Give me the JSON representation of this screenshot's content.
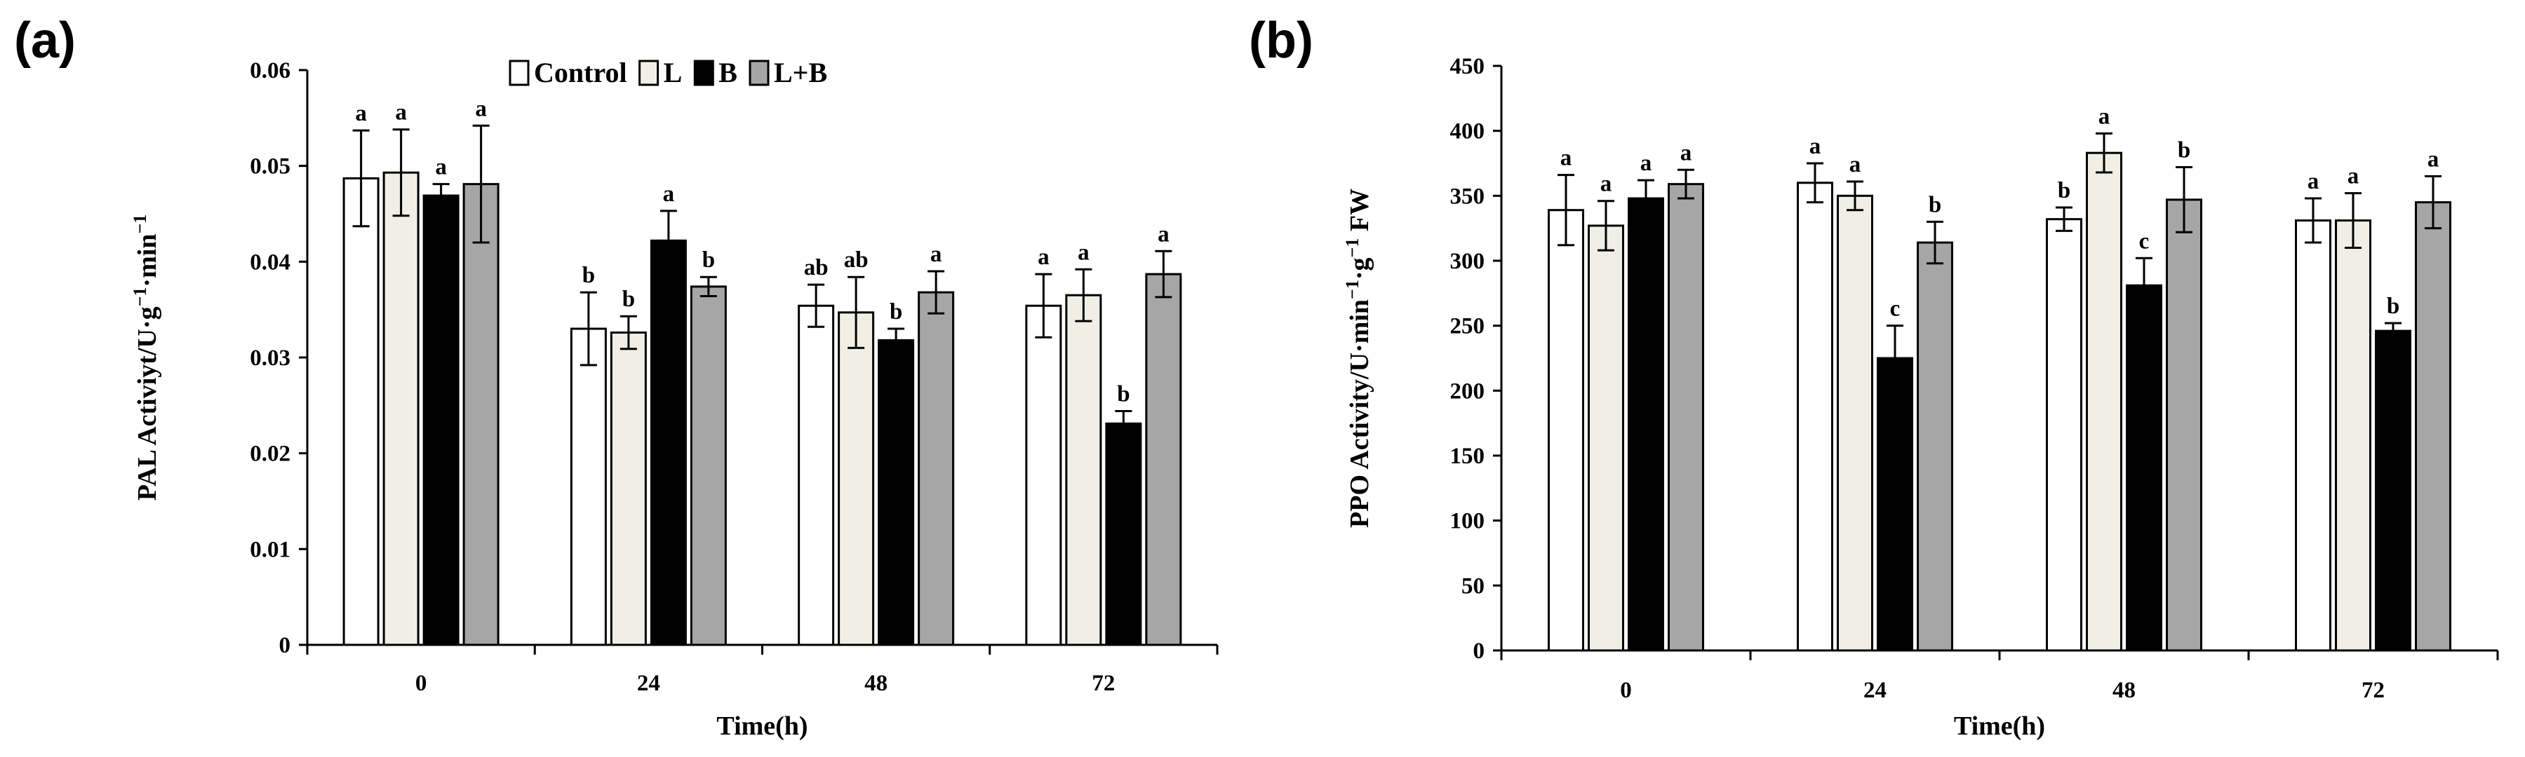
{
  "colors": {
    "Control": "#ffffff",
    "L": "#f0efe6",
    "B": "#000000",
    "L+B": "#a6a6a6",
    "axis": "#000000"
  },
  "legend": [
    "Control",
    "L",
    "B",
    "L+B"
  ],
  "chart_data": [
    {
      "panel": "(a)",
      "type": "bar",
      "ylabel": "PAL Activiyt/U·g⁻¹·min⁻¹",
      "xlabel": "Time(h)",
      "categories": [
        "0",
        "24",
        "48",
        "72"
      ],
      "ylim": [
        0,
        0.06
      ],
      "yticks": [
        "0",
        "0.01",
        "0.02",
        "0.03",
        "0.04",
        "0.05",
        "0.06"
      ],
      "legend_position": "top-right",
      "series": [
        {
          "name": "Control",
          "values": [
            0.0487,
            0.033,
            0.0354,
            0.0354
          ],
          "errors": [
            0.005,
            0.0038,
            0.0022,
            0.0033
          ],
          "labels": [
            "a",
            "b",
            "ab",
            "a"
          ]
        },
        {
          "name": "L",
          "values": [
            0.0493,
            0.0326,
            0.0347,
            0.0365
          ],
          "errors": [
            0.0045,
            0.0017,
            0.0037,
            0.0027
          ],
          "labels": [
            "a",
            "b",
            "ab",
            "a"
          ]
        },
        {
          "name": "B",
          "values": [
            0.0469,
            0.0422,
            0.0318,
            0.0231
          ],
          "errors": [
            0.0012,
            0.0031,
            0.0012,
            0.0013
          ],
          "labels": [
            "a",
            "a",
            "b",
            "b"
          ]
        },
        {
          "name": "L+B",
          "values": [
            0.0481,
            0.0374,
            0.0368,
            0.0387
          ],
          "errors": [
            0.0061,
            0.001,
            0.0022,
            0.0024
          ],
          "labels": [
            "a",
            "b",
            "a",
            "a"
          ]
        }
      ]
    },
    {
      "panel": "(b)",
      "type": "bar",
      "ylabel": "PPO Activity/U·min⁻¹·g⁻¹ FW",
      "xlabel": "Time(h)",
      "categories": [
        "0",
        "24",
        "48",
        "72"
      ],
      "ylim": [
        0,
        450
      ],
      "yticks": [
        "0",
        "50",
        "100",
        "150",
        "200",
        "250",
        "300",
        "350",
        "400",
        "450"
      ],
      "series": [
        {
          "name": "Control",
          "values": [
            339,
            360,
            332,
            331
          ],
          "errors": [
            27,
            15,
            9,
            17
          ],
          "labels": [
            "a",
            "a",
            "b",
            "a"
          ]
        },
        {
          "name": "L",
          "values": [
            327,
            350,
            383,
            331
          ],
          "errors": [
            19,
            11,
            15,
            21
          ],
          "labels": [
            "a",
            "a",
            "a",
            "a"
          ]
        },
        {
          "name": "B",
          "values": [
            348,
            225,
            281,
            246
          ],
          "errors": [
            14,
            25,
            21,
            6
          ],
          "labels": [
            "a",
            "c",
            "c",
            "b"
          ]
        },
        {
          "name": "L+B",
          "values": [
            359,
            314,
            347,
            345
          ],
          "errors": [
            11,
            16,
            25,
            20
          ],
          "labels": [
            "a",
            "b",
            "b",
            "a"
          ]
        }
      ]
    }
  ]
}
